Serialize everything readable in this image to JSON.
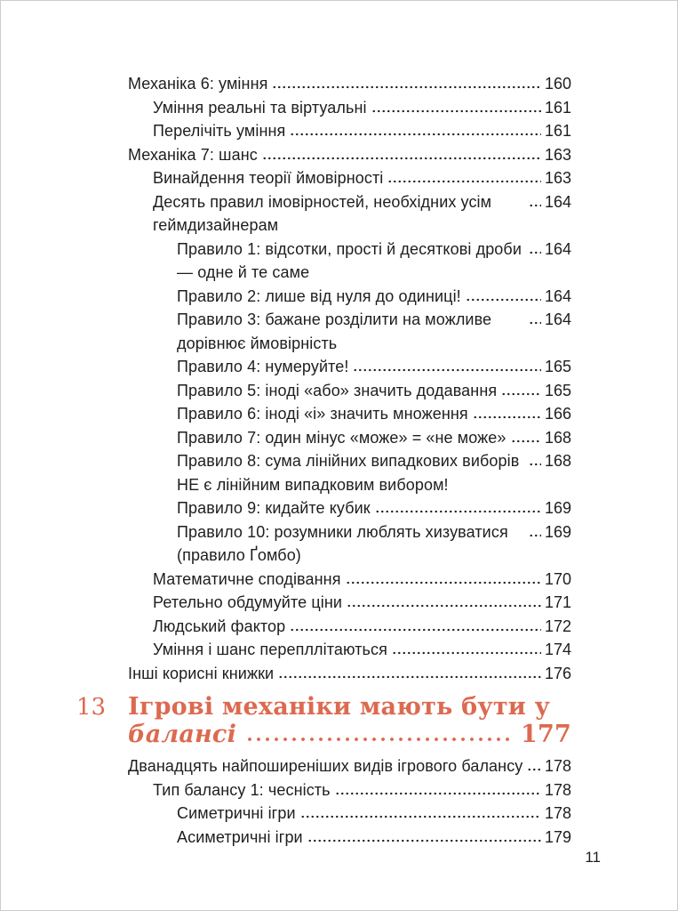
{
  "page": {
    "footer_page_number": "11",
    "colors": {
      "accent": "#dc6a50",
      "body_text": "#1e1e1e",
      "page_border": "#cccccc"
    }
  },
  "toc": {
    "items": [
      {
        "type": "entry",
        "level": 1,
        "text": "Механіка 6: уміння",
        "page": "160"
      },
      {
        "type": "entry",
        "level": 2,
        "text": "Уміння реальні та віртуальні",
        "page": "161"
      },
      {
        "type": "entry",
        "level": 2,
        "text": "Перелічіть уміння",
        "page": "161"
      },
      {
        "type": "entry",
        "level": 1,
        "text": "Механіка 7: шанс",
        "page": "163"
      },
      {
        "type": "entry",
        "level": 2,
        "text": "Винайдення теорії ймовірності",
        "page": "163"
      },
      {
        "type": "entry",
        "level": 2,
        "text": "Десять правил імовірностей, необхідних усім геймдизайнерам",
        "page": "164"
      },
      {
        "type": "entry",
        "level": 3,
        "text": "Правило 1: відсотки, прості й десяткові дроби — одне й те саме",
        "page": "164"
      },
      {
        "type": "entry",
        "level": 3,
        "text": "Правило 2: лише від нуля до одиниці!",
        "page": "164"
      },
      {
        "type": "entry",
        "level": 3,
        "text": "Правило 3: бажане розділити на можливе дорівнює ймовірність",
        "page": "164"
      },
      {
        "type": "entry",
        "level": 3,
        "text": "Правило 4: нумеруйте!",
        "page": "165"
      },
      {
        "type": "entry",
        "level": 3,
        "text": "Правило 5: іноді «або» значить додавання",
        "page": "165"
      },
      {
        "type": "entry",
        "level": 3,
        "text": "Правило 6: іноді «і» значить множення",
        "page": "166"
      },
      {
        "type": "entry",
        "level": 3,
        "text": "Правило 7: один мінус «може» = «не може»",
        "page": "168"
      },
      {
        "type": "entry",
        "level": 3,
        "text": "Правило 8: сума лінійних випадкових виборів НЕ є лінійним випадковим вибором!",
        "page": "168"
      },
      {
        "type": "entry",
        "level": 3,
        "text": "Правило 9: кидайте кубик",
        "page": "169"
      },
      {
        "type": "entry",
        "level": 3,
        "text": "Правило 10: розумники люблять хизуватися (правило Ґомбо)",
        "page": "169"
      },
      {
        "type": "entry",
        "level": 2,
        "text": "Математичне сподівання",
        "page": "170"
      },
      {
        "type": "entry",
        "level": 2,
        "text": "Ретельно обдумуйте ціни",
        "page": "171"
      },
      {
        "type": "entry",
        "level": 2,
        "text": "Людський фактор",
        "page": "172"
      },
      {
        "type": "entry",
        "level": 2,
        "text": "Уміння і шанс перепллітаються",
        "page": "174"
      },
      {
        "type": "entry",
        "level": 1,
        "text": "Інші корисні книжки",
        "page": "176"
      },
      {
        "type": "chapter",
        "number": "13",
        "title_line1": "Ігрові механіки мають бути у",
        "title_italic": "балансі",
        "page": "177"
      },
      {
        "type": "entry",
        "level": 1,
        "text": "Дванадцять найпоширеніших видів ігрового балансу",
        "page": "178"
      },
      {
        "type": "entry",
        "level": 2,
        "text": "Тип балансу 1: чесність",
        "page": "178"
      },
      {
        "type": "entry",
        "level": 3,
        "text": "Симетричні ігри",
        "page": "178"
      },
      {
        "type": "entry",
        "level": 3,
        "text": "Асиметричні ігри",
        "page": "179"
      }
    ]
  }
}
